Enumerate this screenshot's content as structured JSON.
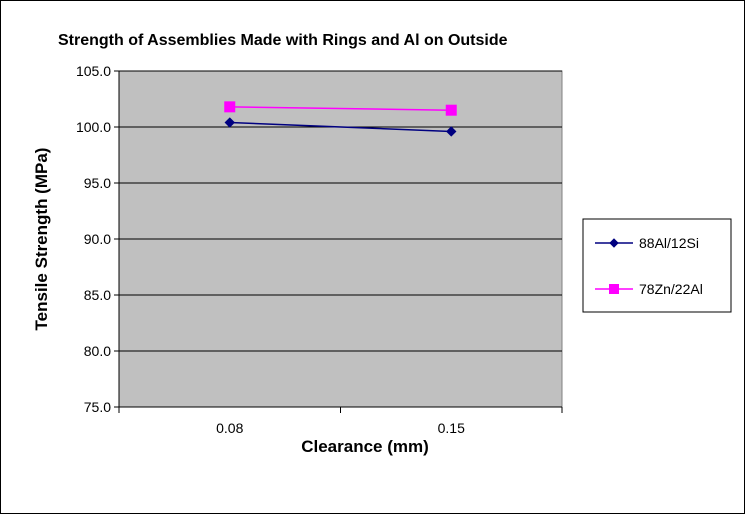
{
  "chart_data": {
    "type": "line",
    "title": "Strength of  Assemblies Made with Rings and Al on Outside",
    "xlabel": "Clearance (mm)",
    "ylabel": "Tensile Strength (MPa)",
    "categories": [
      "0.08",
      "0.15"
    ],
    "ylim": [
      75.0,
      105.0
    ],
    "yticks": [
      "75.0",
      "80.0",
      "85.0",
      "90.0",
      "95.0",
      "100.0",
      "105.0"
    ],
    "grid": "horizontal",
    "plot_background": "#c0c0c0",
    "legend_position": "right",
    "series": [
      {
        "name": "88Al/12Si",
        "values": [
          100.4,
          99.6
        ],
        "color": "#000080",
        "marker": "diamond"
      },
      {
        "name": "78Zn/22Al",
        "values": [
          101.8,
          101.5
        ],
        "color": "#ff00ff",
        "marker": "square"
      }
    ]
  }
}
